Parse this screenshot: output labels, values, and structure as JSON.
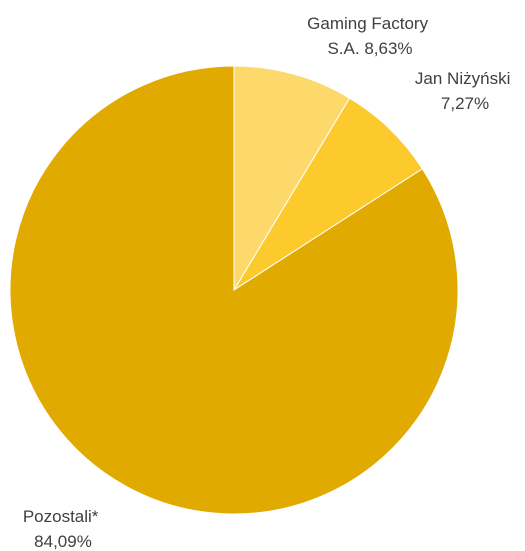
{
  "chart_data": {
    "type": "pie",
    "title": "",
    "legend": "none",
    "start_angle_deg": 0,
    "direction": "clockwise",
    "slices": [
      {
        "name": "Gaming Factory S.A.",
        "value": 8.63,
        "label_lines": [
          "Gaming Factory",
          "S.A. 8,63%"
        ],
        "color": "#FDD96B"
      },
      {
        "name": "Jan Niżyński",
        "value": 7.27,
        "label_lines": [
          "Jan Niżyński",
          "7,27%"
        ],
        "color": "#FDCA2E"
      },
      {
        "name": "Pozostali*",
        "value": 84.09,
        "label_lines": [
          "Pozostali*",
          "84,09%"
        ],
        "color": "#E0AA00"
      }
    ]
  }
}
